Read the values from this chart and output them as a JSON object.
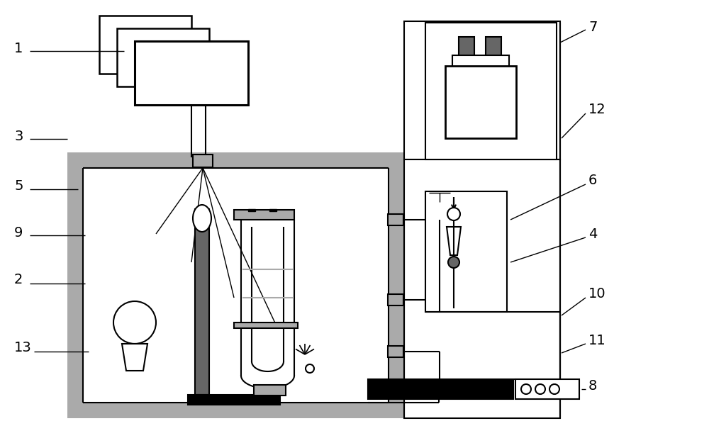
{
  "bg_color": "#ffffff",
  "gray": "#aaaaaa",
  "dark_gray": "#666666",
  "black": "#000000",
  "label_fontsize": 14
}
